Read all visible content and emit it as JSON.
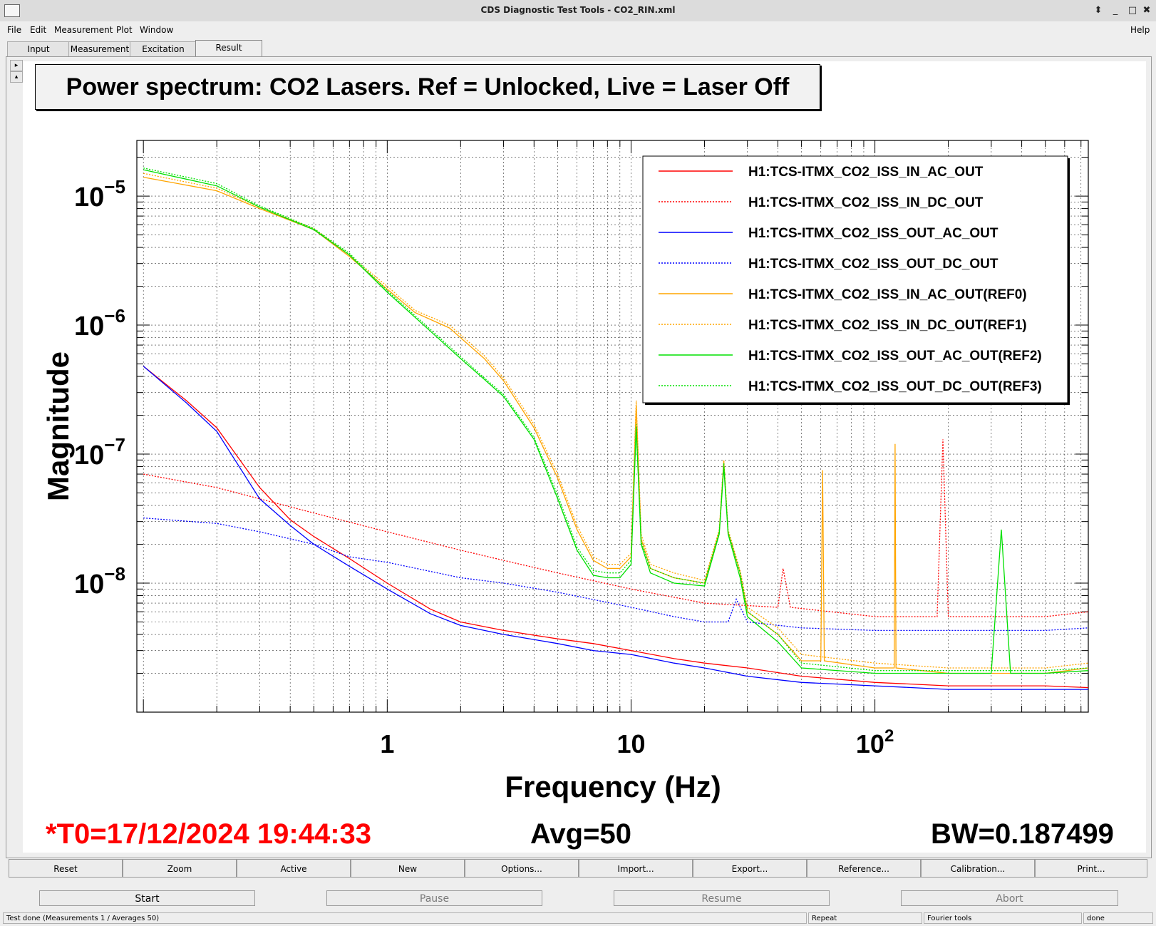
{
  "window": {
    "title": "CDS Diagnostic Test Tools - CO2_RIN.xml",
    "controls": [
      "⬍",
      "_",
      "□",
      "✖"
    ]
  },
  "menu": {
    "file": "File",
    "edit": "Edit",
    "measurement": "Measurement",
    "plot": "Plot",
    "window": "Window",
    "help": "Help"
  },
  "tabs": [
    "Input",
    "Measurement",
    "Excitation",
    "Result"
  ],
  "side_buttons": [
    "▸",
    "▴"
  ],
  "plot_title": "Power spectrum: CO2 Lasers. Ref = Unlocked, Live = Laser Off",
  "footer": {
    "t0": "*T0=17/12/2024 19:44:33",
    "avg": "Avg=50",
    "bw": "BW=0.187499"
  },
  "toolbar": [
    "Reset",
    "Zoom",
    "Active",
    "New",
    "Options...",
    "Import...",
    "Export...",
    "Reference...",
    "Calibration...",
    "Print..."
  ],
  "control": {
    "start": "Start",
    "pause": "Pause",
    "resume": "Resume",
    "abort": "Abort"
  },
  "status": {
    "message": "Test done (Measurements 1 / Averages 50)",
    "repeat": "Repeat",
    "tools": "Fourier tools",
    "state": "done"
  },
  "chart_data": {
    "type": "line",
    "xlabel": "Frequency (Hz)",
    "ylabel": "Magnitude",
    "x_scale": "log",
    "y_scale": "log",
    "xlim": [
      0.094,
      750
    ],
    "ylim": [
      1e-09,
      2.7e-05
    ],
    "x_tick_labels": [
      {
        "v": 1,
        "t": "1"
      },
      {
        "v": 10,
        "t": "10"
      },
      {
        "v": 100,
        "t": "10",
        "sup": "2"
      }
    ],
    "y_tick_labels": [
      {
        "v": 1e-05,
        "t": "10",
        "sup": "−5"
      },
      {
        "v": 1e-06,
        "t": "10",
        "sup": "−6"
      },
      {
        "v": 1e-07,
        "t": "10",
        "sup": "−7"
      },
      {
        "v": 1e-08,
        "t": "10",
        "sup": "−8"
      }
    ],
    "grid": true,
    "legend_position": "top-right",
    "series": [
      {
        "name": "H1:TCS-ITMX_CO2_ISS_IN_AC_OUT",
        "color": "#ff0000",
        "dash": "solid",
        "x": [
          0.1,
          0.15,
          0.2,
          0.3,
          0.4,
          0.5,
          0.7,
          1,
          1.5,
          2,
          3,
          5,
          7,
          10,
          15,
          20,
          30,
          50,
          100,
          200,
          500,
          750
        ],
        "y": [
          4.8e-07,
          2.6e-07,
          1.6e-07,
          5.5e-08,
          3.1e-08,
          2.3e-08,
          1.55e-08,
          1e-08,
          6.3e-09,
          5e-09,
          4.3e-09,
          3.7e-09,
          3.4e-09,
          3e-09,
          2.6e-09,
          2.4e-09,
          2.2e-09,
          1.9e-09,
          1.7e-09,
          1.6e-09,
          1.6e-09,
          1.55e-09
        ]
      },
      {
        "name": "H1:TCS-ITMX_CO2_ISS_IN_DC_OUT",
        "color": "#ff0000",
        "dash": "dotted",
        "x": [
          0.1,
          0.2,
          0.3,
          0.5,
          1,
          2,
          3,
          5,
          10,
          20,
          40,
          42,
          45,
          100,
          180,
          190,
          200,
          500,
          750
        ],
        "y": [
          7e-08,
          5.5e-08,
          4.5e-08,
          3.5e-08,
          2.5e-08,
          1.8e-08,
          1.5e-08,
          1.2e-08,
          9e-09,
          7e-09,
          6.5e-09,
          1.3e-08,
          6.5e-09,
          5.5e-09,
          5.5e-09,
          1.3e-07,
          5.5e-09,
          5.5e-09,
          6e-09
        ]
      },
      {
        "name": "H1:TCS-ITMX_CO2_ISS_OUT_AC_OUT",
        "color": "#0000ff",
        "dash": "solid",
        "x": [
          0.1,
          0.15,
          0.2,
          0.3,
          0.4,
          0.5,
          0.7,
          1,
          1.5,
          2,
          3,
          5,
          7,
          10,
          15,
          20,
          30,
          50,
          100,
          200,
          500,
          750
        ],
        "y": [
          4.8e-07,
          2.5e-07,
          1.5e-07,
          4.5e-08,
          2.8e-08,
          2e-08,
          1.35e-08,
          9e-09,
          5.8e-09,
          4.7e-09,
          4e-09,
          3.4e-09,
          3e-09,
          2.8e-09,
          2.4e-09,
          2.2e-09,
          1.9e-09,
          1.7e-09,
          1.6e-09,
          1.5e-09,
          1.5e-09,
          1.5e-09
        ]
      },
      {
        "name": "H1:TCS-ITMX_CO2_ISS_OUT_DC_OUT",
        "color": "#0000ff",
        "dash": "dotted",
        "x": [
          0.1,
          0.2,
          0.3,
          0.5,
          0.7,
          1,
          2,
          3,
          5,
          10,
          15,
          20,
          25,
          27,
          30,
          50,
          100,
          200,
          500,
          750
        ],
        "y": [
          3.2e-08,
          2.9e-08,
          2.5e-08,
          2e-08,
          1.6e-08,
          1.45e-08,
          1.1e-08,
          1e-08,
          8.5e-09,
          6.5e-09,
          5.5e-09,
          5e-09,
          5e-09,
          7.5e-09,
          5e-09,
          4.5e-09,
          4.3e-09,
          4.3e-09,
          4.3e-09,
          4.5e-09
        ]
      },
      {
        "name": "H1:TCS-ITMX_CO2_ISS_IN_AC_OUT(REF0)",
        "color": "#ffa500",
        "dash": "solid",
        "x": [
          0.1,
          0.2,
          0.3,
          0.5,
          0.7,
          1,
          1.3,
          1.8,
          2.5,
          3,
          4,
          5,
          6,
          7,
          8,
          9,
          10,
          10.5,
          11,
          12,
          15,
          20,
          23,
          24,
          25,
          28,
          30,
          40,
          50,
          60,
          61,
          62,
          100,
          120,
          121,
          122,
          200,
          300,
          500,
          750
        ],
        "y": [
          1.4e-05,
          1.1e-05,
          8e-06,
          5.5e-06,
          3.4e-06,
          1.9e-06,
          1.25e-06,
          9.5e-07,
          5.5e-07,
          3.7e-07,
          1.6e-07,
          6.5e-08,
          2.6e-08,
          1.5e-08,
          1.3e-08,
          1.3e-08,
          1.6e-08,
          2.4e-07,
          2.2e-08,
          1.3e-08,
          1.1e-08,
          1e-08,
          2.5e-08,
          8.8e-08,
          2.5e-08,
          1.2e-08,
          6e-09,
          4e-09,
          2.5e-09,
          2.5e-09,
          7.5e-08,
          2.5e-09,
          2.2e-09,
          2.2e-09,
          1.2e-07,
          2.2e-09,
          2e-09,
          2e-09,
          2e-09,
          2.2e-09
        ]
      },
      {
        "name": "H1:TCS-ITMX_CO2_ISS_IN_DC_OUT(REF1)",
        "color": "#ffa500",
        "dash": "dotted",
        "x": [
          0.1,
          0.2,
          0.3,
          0.5,
          0.7,
          1,
          1.3,
          1.8,
          2.5,
          3,
          4,
          5,
          6,
          7,
          8,
          9,
          10,
          10.5,
          11,
          12,
          15,
          20,
          23,
          24,
          25,
          28,
          30,
          40,
          50,
          100,
          200,
          500,
          750
        ],
        "y": [
          1.5e-05,
          1.15e-05,
          8.2e-06,
          5.6e-06,
          3.5e-06,
          2e-06,
          1.3e-06,
          1e-06,
          5.8e-07,
          3.9e-07,
          1.7e-07,
          7e-08,
          2.8e-08,
          1.6e-08,
          1.4e-08,
          1.4e-08,
          1.7e-08,
          2.6e-07,
          2.4e-08,
          1.4e-08,
          1.2e-08,
          1.05e-08,
          2.6e-08,
          9e-08,
          2.6e-08,
          1.25e-08,
          6.5e-09,
          4.5e-09,
          2.8e-09,
          2.4e-09,
          2.2e-09,
          2.2e-09,
          2.4e-09
        ]
      },
      {
        "name": "H1:TCS-ITMX_CO2_ISS_OUT_AC_OUT(REF2)",
        "color": "#00e000",
        "dash": "solid",
        "x": [
          0.1,
          0.2,
          0.3,
          0.5,
          0.7,
          1,
          1.5,
          2,
          2.5,
          3,
          4,
          5,
          6,
          7,
          8,
          9,
          10,
          10.5,
          11,
          12,
          15,
          20,
          23,
          24,
          25,
          28,
          30,
          40,
          50,
          100,
          300,
          330,
          360,
          500,
          750
        ],
        "y": [
          1.6e-05,
          1.2e-05,
          8.2e-06,
          5.5e-06,
          3.5e-06,
          1.8e-06,
          9e-07,
          5.5e-07,
          3.8e-07,
          2.8e-07,
          1.3e-07,
          4.5e-08,
          1.8e-08,
          1.15e-08,
          1.1e-08,
          1.1e-08,
          1.4e-08,
          1.6e-07,
          2e-08,
          1.2e-08,
          1e-08,
          9.5e-09,
          2.4e-08,
          8e-08,
          2.4e-08,
          1.1e-08,
          5.5e-09,
          3.5e-09,
          2.2e-09,
          2e-09,
          2e-09,
          2.6e-08,
          2e-09,
          2e-09,
          2.1e-09
        ]
      },
      {
        "name": "H1:TCS-ITMX_CO2_ISS_OUT_DC_OUT(REF3)",
        "color": "#00e000",
        "dash": "dotted",
        "x": [
          0.1,
          0.2,
          0.3,
          0.5,
          0.7,
          1,
          1.5,
          2,
          2.5,
          3,
          4,
          5,
          6,
          7,
          8,
          9,
          10,
          10.5,
          11,
          12,
          15,
          20,
          23,
          24,
          25,
          28,
          30,
          40,
          50,
          100,
          200,
          500,
          750
        ],
        "y": [
          1.65e-05,
          1.25e-05,
          8.4e-06,
          5.6e-06,
          3.6e-06,
          1.85e-06,
          9.3e-07,
          5.7e-07,
          3.9e-07,
          2.9e-07,
          1.35e-07,
          4.8e-08,
          1.9e-08,
          1.25e-08,
          1.2e-08,
          1.2e-08,
          1.5e-08,
          1.7e-07,
          2.1e-08,
          1.3e-08,
          1.1e-08,
          1e-08,
          2.5e-08,
          8.5e-08,
          2.5e-08,
          1.2e-08,
          6e-09,
          4e-09,
          2.4e-09,
          2.1e-09,
          2.1e-09,
          2.1e-09,
          2.2e-09
        ]
      }
    ]
  }
}
